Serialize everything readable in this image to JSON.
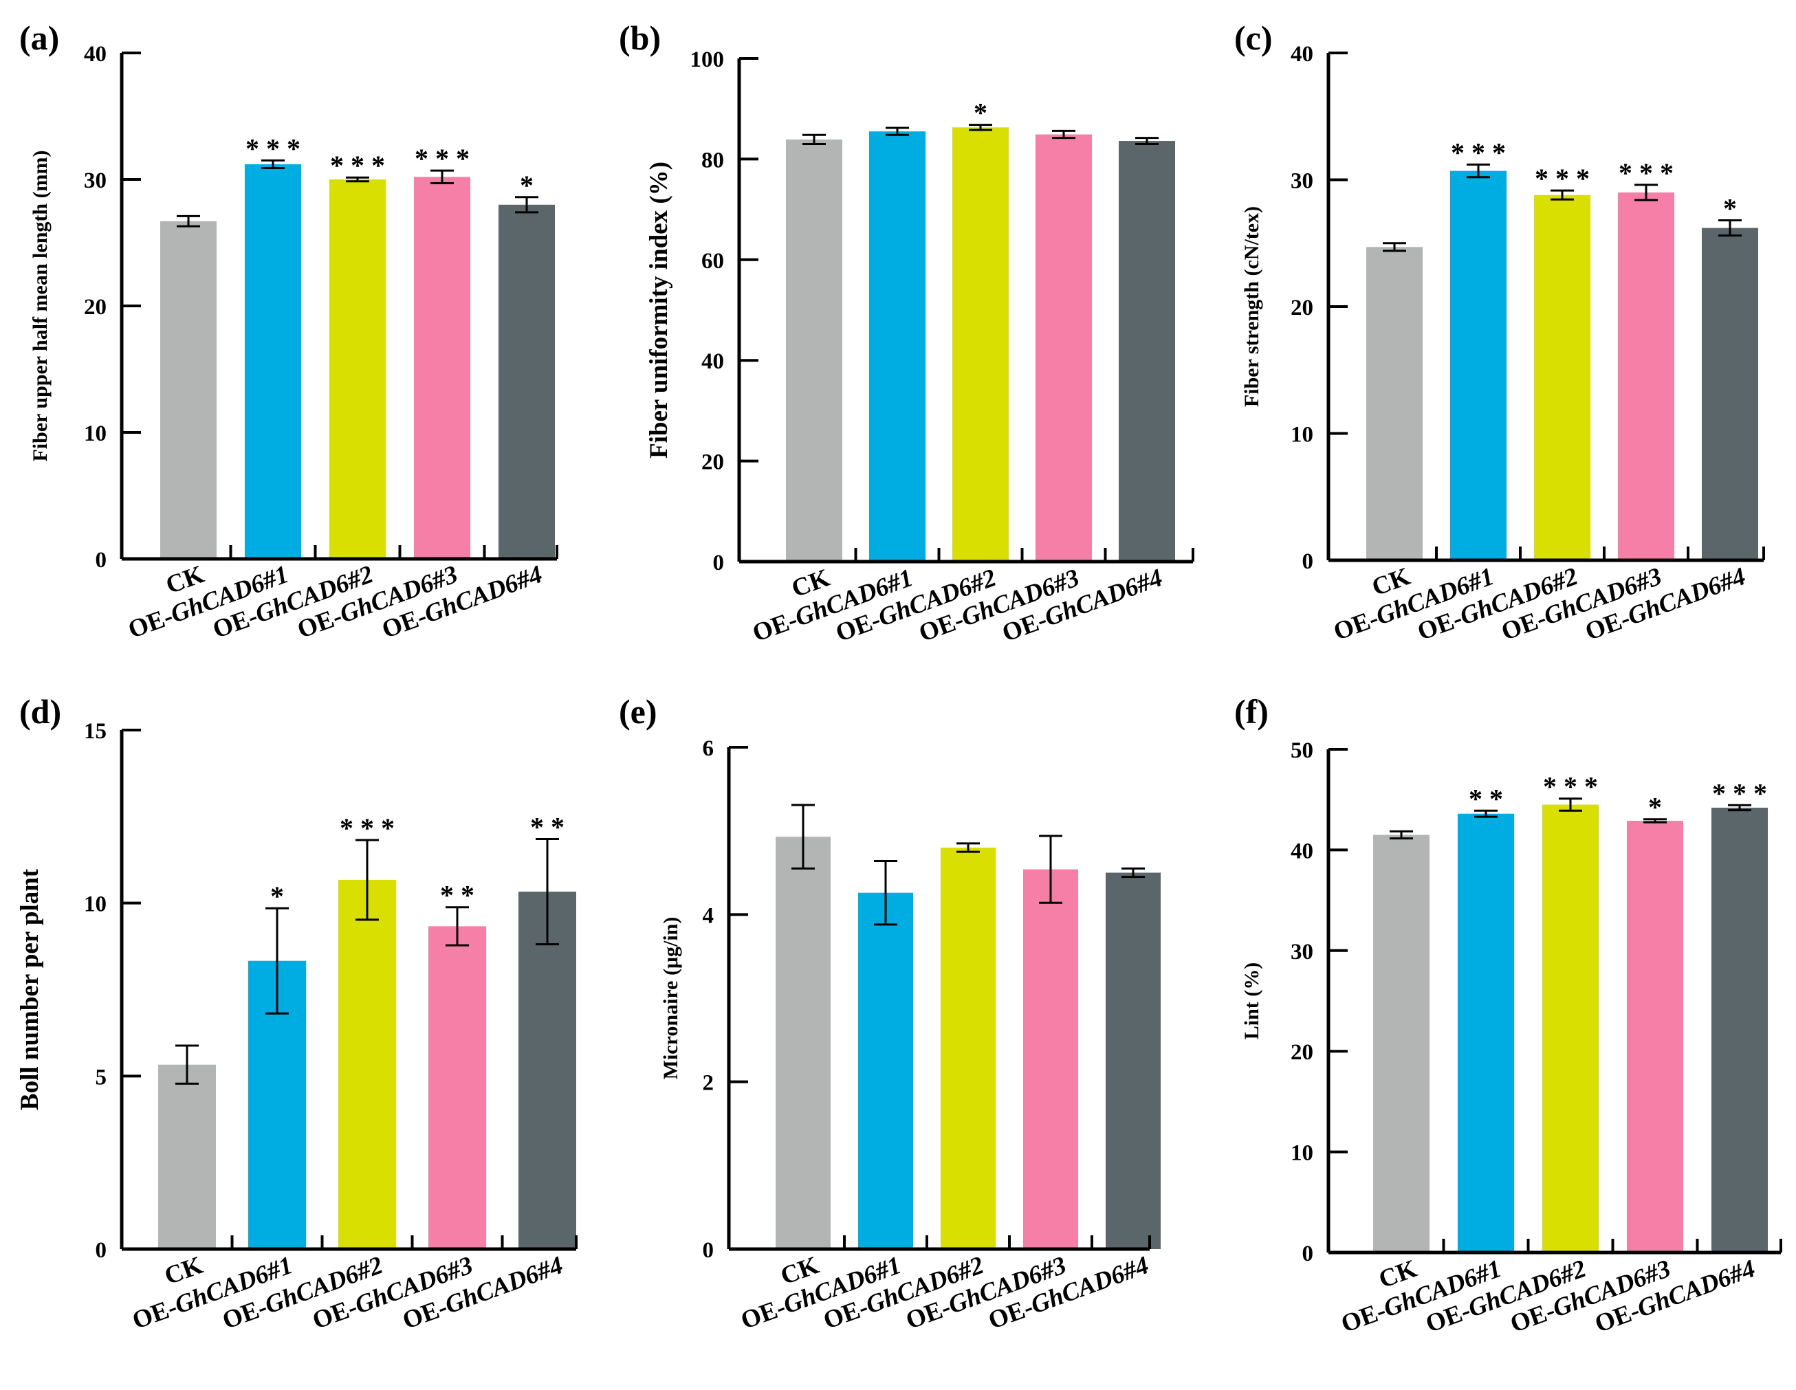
{
  "colors": {
    "CK": "#b3b5b4",
    "OE-GhCAD6#1": "#00ade3",
    "OE-GhCAD6#2": "#d9df00",
    "OE-GhCAD6#3": "#f57fa7",
    "OE-GhCAD6#4": "#5a6669"
  },
  "chart_data": [
    {
      "panel": "(a)",
      "type": "bar",
      "ylabel": "Fiber upper half mean length (mm)",
      "ylim": [
        0,
        40
      ],
      "yticks": [
        0,
        10,
        20,
        30,
        40
      ],
      "categories": [
        {
          "prefix": "CK",
          "gene": ""
        },
        {
          "prefix": "OE-",
          "gene": "GhCAD6#1"
        },
        {
          "prefix": "OE-",
          "gene": "GhCAD6#2"
        },
        {
          "prefix": "OE-",
          "gene": "GhCAD6#3"
        },
        {
          "prefix": "OE-",
          "gene": "GhCAD6#4"
        }
      ],
      "values": [
        26.7,
        31.2,
        30.0,
        30.2,
        28.0
      ],
      "errors": [
        0.4,
        0.3,
        0.15,
        0.5,
        0.6
      ],
      "significance": [
        "",
        "* * *",
        "* * *",
        "* * *",
        "*"
      ]
    },
    {
      "panel": "(b)",
      "type": "bar",
      "ylabel": "Fiber uniformity index (%)",
      "ylim": [
        0,
        100
      ],
      "yticks": [
        0,
        20,
        40,
        60,
        80,
        100
      ],
      "categories": [
        {
          "prefix": "CK",
          "gene": ""
        },
        {
          "prefix": "OE-",
          "gene": "GhCAD6#1"
        },
        {
          "prefix": "OE-",
          "gene": "GhCAD6#2"
        },
        {
          "prefix": "OE-",
          "gene": "GhCAD6#3"
        },
        {
          "prefix": "OE-",
          "gene": "GhCAD6#4"
        }
      ],
      "values": [
        83.9,
        85.5,
        86.3,
        84.9,
        83.6
      ],
      "errors": [
        0.9,
        0.7,
        0.5,
        0.7,
        0.6
      ],
      "significance": [
        "",
        "",
        "*",
        "",
        ""
      ]
    },
    {
      "panel": "(c)",
      "type": "bar",
      "ylabel": "Fiber  strength (cN/tex)",
      "ylim": [
        0,
        40
      ],
      "yticks": [
        0,
        10,
        20,
        30,
        40
      ],
      "categories": [
        {
          "prefix": "CK",
          "gene": ""
        },
        {
          "prefix": "OE-",
          "gene": "GhCAD6#1"
        },
        {
          "prefix": "OE-",
          "gene": "GhCAD6#2"
        },
        {
          "prefix": "OE-",
          "gene": "GhCAD6#3"
        },
        {
          "prefix": "OE-",
          "gene": "GhCAD6#4"
        }
      ],
      "values": [
        24.7,
        30.7,
        28.8,
        29.0,
        26.2
      ],
      "errors": [
        0.3,
        0.5,
        0.35,
        0.6,
        0.6
      ],
      "significance": [
        "",
        "* * *",
        "* * *",
        "* * *",
        "*"
      ]
    },
    {
      "panel": "(d)",
      "type": "bar",
      "ylabel": "Boll number per plant",
      "ylim": [
        0,
        15
      ],
      "yticks": [
        0,
        5,
        10,
        15
      ],
      "categories": [
        {
          "prefix": "CK",
          "gene": ""
        },
        {
          "prefix": "OE-",
          "gene": "GhCAD6#1"
        },
        {
          "prefix": "OE-",
          "gene": "GhCAD6#2"
        },
        {
          "prefix": "OE-",
          "gene": "GhCAD6#3"
        },
        {
          "prefix": "OE-",
          "gene": "GhCAD6#4"
        }
      ],
      "values": [
        5.33,
        8.33,
        10.67,
        9.33,
        10.33
      ],
      "errors": [
        0.55,
        1.52,
        1.15,
        0.55,
        1.52
      ],
      "significance": [
        "",
        "*",
        "* * *",
        "* *",
        "* *"
      ]
    },
    {
      "panel": "(e)",
      "type": "bar",
      "ylabel": "Micronaire (μg/in)",
      "ylim": [
        0,
        6
      ],
      "yticks": [
        0,
        2,
        4,
        6
      ],
      "categories": [
        {
          "prefix": "CK",
          "gene": ""
        },
        {
          "prefix": "OE-",
          "gene": "GhCAD6#1"
        },
        {
          "prefix": "OE-",
          "gene": "GhCAD6#2"
        },
        {
          "prefix": "OE-",
          "gene": "GhCAD6#3"
        },
        {
          "prefix": "OE-",
          "gene": "GhCAD6#4"
        }
      ],
      "values": [
        4.93,
        4.26,
        4.8,
        4.54,
        4.5
      ],
      "errors": [
        0.38,
        0.38,
        0.05,
        0.4,
        0.05
      ],
      "significance": [
        "",
        "",
        "",
        "",
        ""
      ]
    },
    {
      "panel": "(f)",
      "type": "bar",
      "ylabel": "Lint (%)",
      "ylim": [
        0,
        50
      ],
      "yticks": [
        0,
        10,
        20,
        30,
        40,
        50
      ],
      "categories": [
        {
          "prefix": "CK",
          "gene": ""
        },
        {
          "prefix": "OE-",
          "gene": "GhCAD6#1"
        },
        {
          "prefix": "OE-",
          "gene": "GhCAD6#2"
        },
        {
          "prefix": "OE-",
          "gene": "GhCAD6#3"
        },
        {
          "prefix": "OE-",
          "gene": "GhCAD6#4"
        }
      ],
      "values": [
        41.5,
        43.6,
        44.5,
        42.9,
        44.2
      ],
      "errors": [
        0.35,
        0.3,
        0.6,
        0.15,
        0.25
      ],
      "significance": [
        "",
        "* *",
        "* * *",
        "*",
        "* * *"
      ]
    }
  ]
}
